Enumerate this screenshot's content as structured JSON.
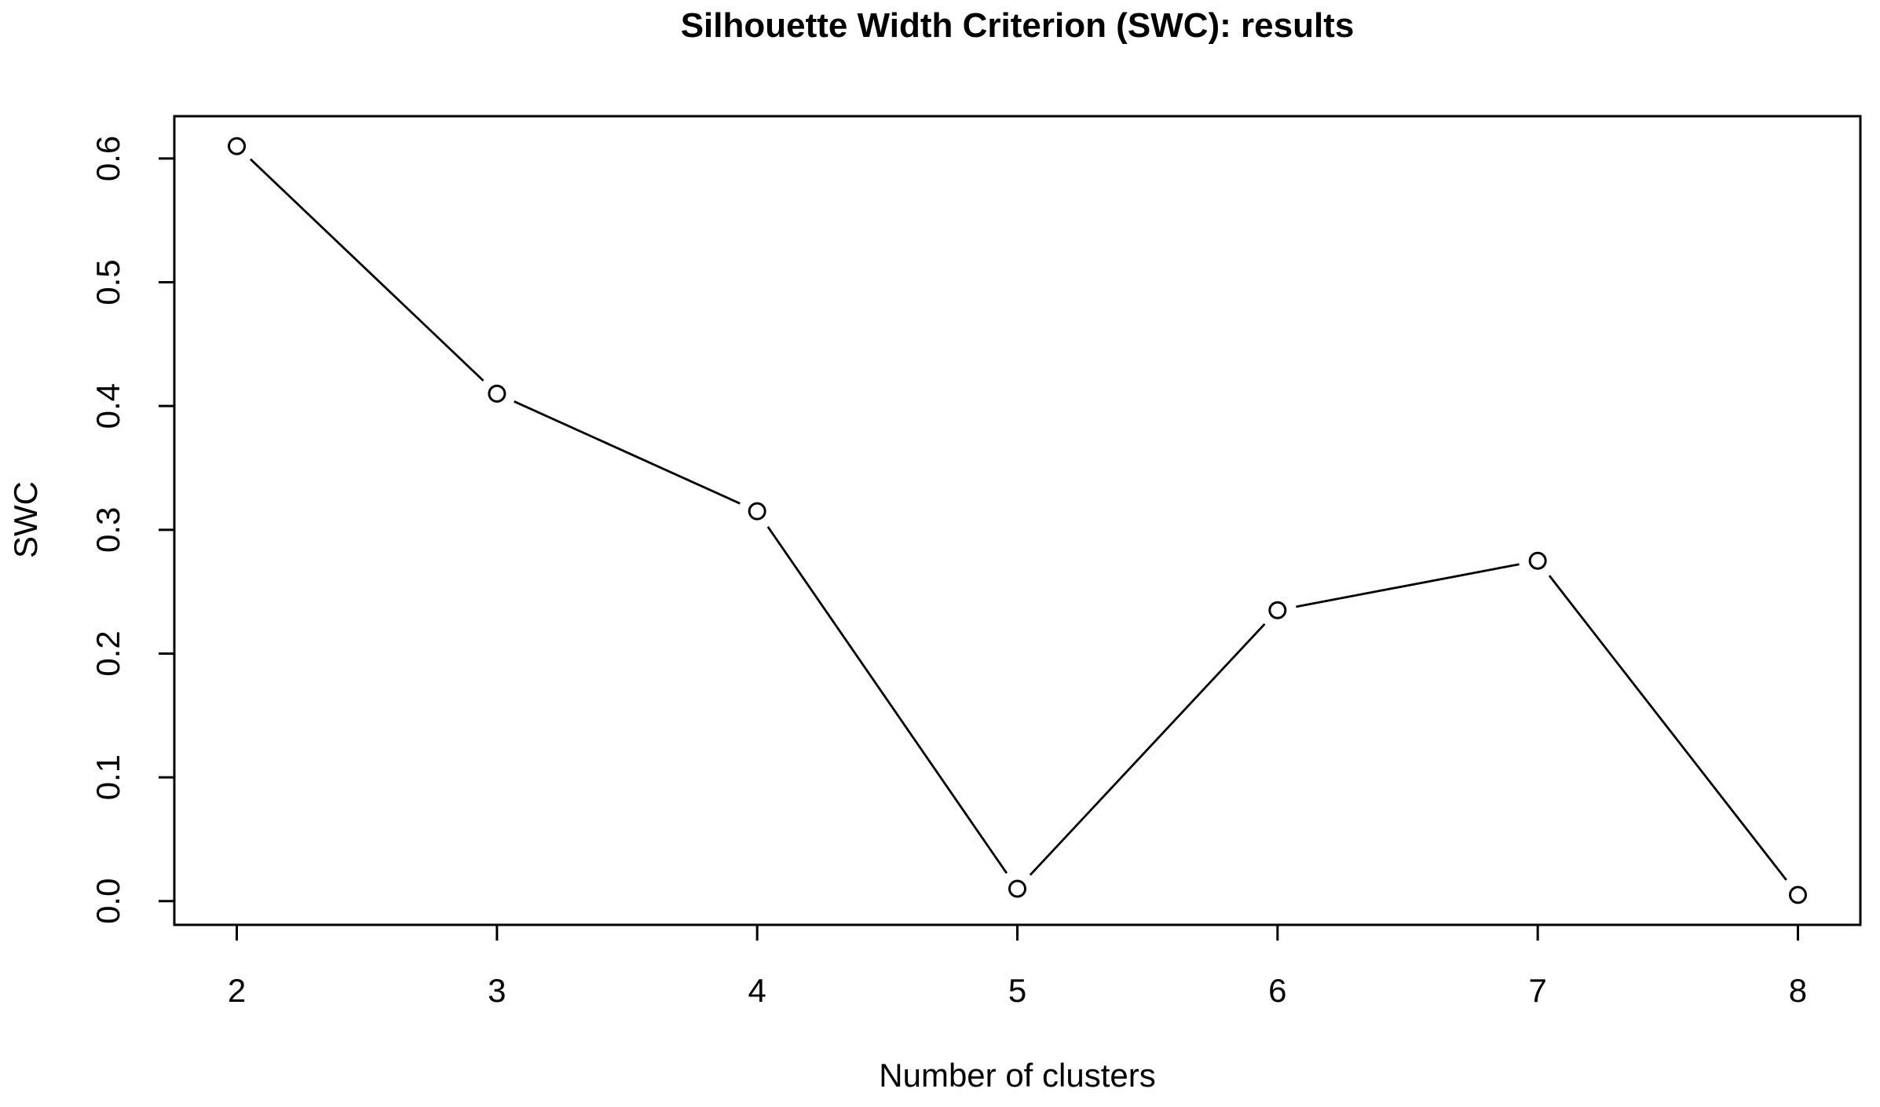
{
  "chart_data": {
    "type": "line",
    "title": "Silhouette Width Criterion (SWC): results",
    "xlabel": "Number of clusters",
    "ylabel": "SWC",
    "x": [
      2,
      3,
      4,
      5,
      6,
      7,
      8
    ],
    "y": [
      0.61,
      0.41,
      0.315,
      0.01,
      0.235,
      0.275,
      0.005
    ],
    "series_name": "SWC",
    "xticks": [
      2,
      3,
      4,
      5,
      6,
      7,
      8
    ],
    "xtick_labels": [
      "2",
      "3",
      "4",
      "5",
      "6",
      "7",
      "8"
    ],
    "yticks": [
      0.0,
      0.1,
      0.2,
      0.3,
      0.4,
      0.5,
      0.6
    ],
    "ytick_labels": [
      "0.0",
      "0.1",
      "0.2",
      "0.3",
      "0.4",
      "0.5",
      "0.6"
    ],
    "xlim": [
      1.76,
      8.24
    ],
    "ylim": [
      -0.0192,
      0.6342
    ],
    "grid": false,
    "legend_position": "none",
    "marker": "open-circle",
    "line_style": "segments-with-gaps",
    "colors": {
      "line": "#000000",
      "marker_stroke": "#000000",
      "marker_fill": "#ffffff",
      "axis": "#000000",
      "text": "#000000",
      "background": "#ffffff"
    }
  }
}
